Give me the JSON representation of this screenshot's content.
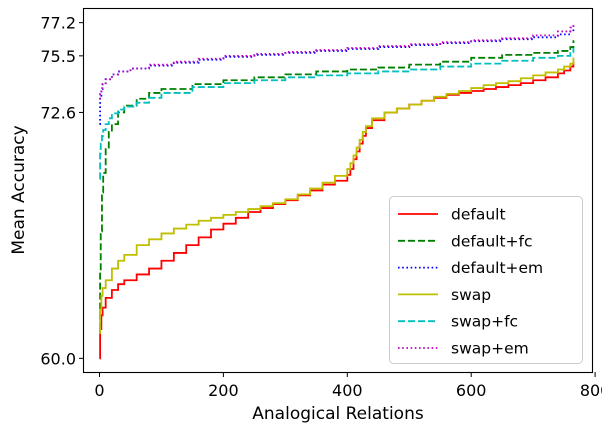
{
  "chart_data": {
    "type": "line",
    "xlabel": "Analogical Relations",
    "ylabel": "Mean Accuracy",
    "xlim": [
      -25,
      795
    ],
    "ylim": [
      59.3,
      77.9
    ],
    "x_ticks": [
      0,
      200,
      400,
      600,
      800
    ],
    "y_ticks": [
      60.0,
      72.6,
      75.5,
      77.2
    ],
    "x_tick_labels": [
      "0",
      "200",
      "400",
      "600",
      "800"
    ],
    "y_tick_labels": [
      "60.0",
      "72.6",
      "75.5",
      "77.2"
    ],
    "grid": false,
    "legend_position": "lower-right",
    "series": [
      {
        "name": "default",
        "color": "#ff0000",
        "dash": "solid",
        "style": "solid",
        "x": [
          0,
          1,
          3,
          5,
          10,
          20,
          30,
          40,
          60,
          80,
          100,
          120,
          140,
          160,
          180,
          200,
          220,
          240,
          260,
          280,
          300,
          320,
          340,
          360,
          380,
          400,
          405,
          410,
          415,
          420,
          425,
          430,
          440,
          460,
          480,
          500,
          520,
          540,
          560,
          580,
          600,
          620,
          640,
          660,
          680,
          700,
          720,
          740,
          750,
          760,
          765
        ],
        "y": [
          60.0,
          61.5,
          62.2,
          62.6,
          63.1,
          63.5,
          63.8,
          64.0,
          64.3,
          64.6,
          65.0,
          65.4,
          65.8,
          66.2,
          66.6,
          66.9,
          67.2,
          67.5,
          67.7,
          67.9,
          68.1,
          68.35,
          68.6,
          68.9,
          69.1,
          69.4,
          69.7,
          70.2,
          70.6,
          71.0,
          71.4,
          71.8,
          72.2,
          72.6,
          72.8,
          73.0,
          73.2,
          73.35,
          73.5,
          73.6,
          73.7,
          73.8,
          73.9,
          74.0,
          74.1,
          74.25,
          74.4,
          74.6,
          74.75,
          74.95,
          75.2
        ]
      },
      {
        "name": "default+fc",
        "color": "#008000",
        "dash": "dashed",
        "style": "dashed",
        "x": [
          0,
          1,
          2,
          4,
          6,
          10,
          15,
          20,
          30,
          40,
          60,
          80,
          100,
          150,
          200,
          250,
          300,
          350,
          400,
          450,
          500,
          550,
          600,
          650,
          700,
          740,
          760,
          765
        ],
        "y": [
          61.5,
          64.5,
          66.5,
          68.5,
          69.5,
          70.8,
          71.6,
          72.0,
          72.6,
          72.95,
          73.3,
          73.6,
          73.8,
          74.05,
          74.25,
          74.4,
          74.55,
          74.7,
          74.8,
          74.9,
          75.05,
          75.2,
          75.4,
          75.55,
          75.65,
          75.75,
          75.95,
          76.3
        ]
      },
      {
        "name": "default+em",
        "color": "#0000ff",
        "dash": "dotted",
        "style": "dotted",
        "x": [
          0,
          1,
          3,
          5,
          10,
          20,
          30,
          50,
          80,
          120,
          160,
          200,
          250,
          300,
          350,
          400,
          450,
          500,
          550,
          600,
          650,
          700,
          740,
          760,
          765
        ],
        "y": [
          72.0,
          73.3,
          73.8,
          74.05,
          74.3,
          74.55,
          74.7,
          74.85,
          75.0,
          75.15,
          75.3,
          75.45,
          75.55,
          75.65,
          75.75,
          75.85,
          75.95,
          76.05,
          76.15,
          76.25,
          76.35,
          76.45,
          76.6,
          76.75,
          77.0
        ]
      },
      {
        "name": "swap",
        "color": "#bfbf00",
        "dash": "solid",
        "style": "solid",
        "x": [
          0,
          1,
          3,
          5,
          10,
          20,
          30,
          40,
          60,
          80,
          100,
          120,
          140,
          160,
          180,
          200,
          220,
          240,
          260,
          280,
          300,
          320,
          340,
          360,
          380,
          400,
          405,
          410,
          415,
          420,
          425,
          430,
          440,
          460,
          480,
          500,
          520,
          540,
          560,
          580,
          600,
          620,
          640,
          660,
          680,
          700,
          720,
          740,
          750,
          760,
          765
        ],
        "y": [
          61.3,
          62.5,
          63.2,
          63.6,
          64.0,
          64.6,
          65.0,
          65.3,
          65.8,
          66.1,
          66.4,
          66.65,
          66.85,
          67.05,
          67.2,
          67.35,
          67.5,
          67.65,
          67.8,
          67.95,
          68.15,
          68.4,
          68.7,
          69.0,
          69.35,
          69.7,
          70.0,
          70.4,
          70.8,
          71.2,
          71.6,
          71.9,
          72.3,
          72.6,
          72.8,
          73.0,
          73.2,
          73.4,
          73.55,
          73.7,
          73.85,
          74.0,
          74.1,
          74.2,
          74.35,
          74.5,
          74.65,
          74.8,
          74.95,
          75.1,
          75.4
        ]
      },
      {
        "name": "swap+fc",
        "color": "#00bfbf",
        "dash": "dashed",
        "style": "dashed",
        "x": [
          0,
          1,
          2,
          4,
          6,
          10,
          15,
          20,
          30,
          40,
          60,
          80,
          100,
          150,
          200,
          250,
          300,
          350,
          400,
          450,
          500,
          550,
          600,
          650,
          700,
          740,
          760,
          765
        ],
        "y": [
          69.2,
          70.5,
          71.0,
          71.4,
          71.7,
          72.0,
          72.3,
          72.55,
          72.75,
          72.9,
          73.1,
          73.35,
          73.6,
          73.9,
          74.1,
          74.25,
          74.4,
          74.5,
          74.6,
          74.7,
          74.8,
          74.95,
          75.1,
          75.25,
          75.4,
          75.5,
          75.65,
          75.9
        ]
      },
      {
        "name": "swap+em",
        "color": "#bf00bf",
        "dash": "dotted",
        "style": "dotted",
        "x": [
          0,
          1,
          3,
          5,
          10,
          20,
          30,
          50,
          80,
          120,
          160,
          200,
          250,
          300,
          350,
          400,
          450,
          500,
          550,
          600,
          650,
          700,
          740,
          760,
          765
        ],
        "y": [
          73.3,
          73.55,
          73.85,
          74.05,
          74.3,
          74.55,
          74.7,
          74.85,
          75.05,
          75.2,
          75.35,
          75.5,
          75.6,
          75.7,
          75.8,
          75.9,
          76.0,
          76.1,
          76.2,
          76.3,
          76.4,
          76.55,
          76.75,
          76.95,
          77.2
        ]
      }
    ]
  }
}
